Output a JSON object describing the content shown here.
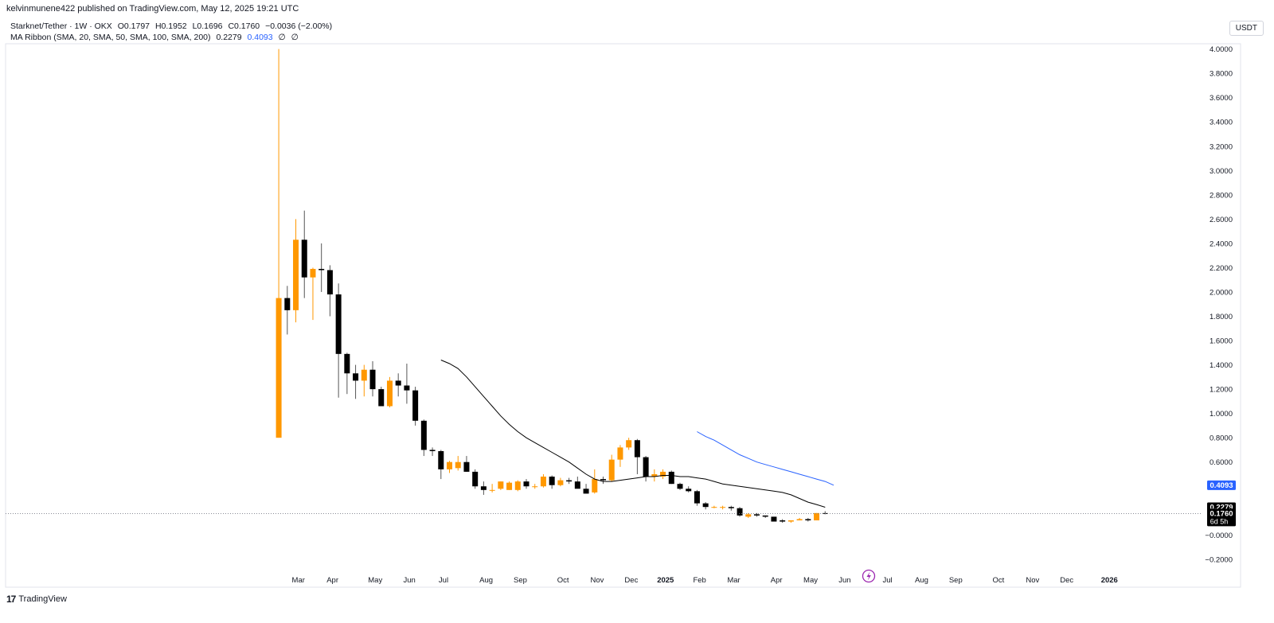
{
  "header": {
    "published": "kelvinmunene422 published on TradingView.com, May 12, 2025 19:21 UTC"
  },
  "legend": {
    "symbol": "Starknet/Tether · 1W · OKX",
    "open": "O0.1797",
    "high": "H0.1952",
    "low": "L0.1696",
    "close": "C0.1760",
    "change": "−0.0036 (−2.00%)",
    "ma_title": "MA Ribbon (SMA, 20, SMA, 50, SMA, 100, SMA, 200)",
    "ma_v1": "0.2279",
    "ma_v2": "0.4093",
    "ma_v3": "∅",
    "ma_v4": "∅"
  },
  "toolbar": {
    "currency": "USDT"
  },
  "footer": {
    "logo_label": "TradingView",
    "logo_glyph": "17"
  },
  "colors": {
    "up": "#ff9800",
    "down": "#000000",
    "sma20": "#000000",
    "sma50": "#2962ff",
    "grid": "#f0f3fa"
  },
  "chart_data": {
    "type": "candlestick",
    "title": "Starknet/Tether · 1W · OKX",
    "y_ticks": [
      "4.0000",
      "3.8000",
      "3.6000",
      "3.4000",
      "3.2000",
      "3.0000",
      "2.8000",
      "2.6000",
      "2.4000",
      "2.2000",
      "2.0000",
      "1.8000",
      "1.6000",
      "1.4000",
      "1.2000",
      "1.0000",
      "0.8000",
      "0.6000",
      "0.4000",
      "0.2000",
      "−0.0000",
      "−0.2000"
    ],
    "y_tick_values": [
      4.0,
      3.8,
      3.6,
      3.4,
      3.2,
      3.0,
      2.8,
      2.6,
      2.4,
      2.2,
      2.0,
      1.8,
      1.6,
      1.4,
      1.2,
      1.0,
      0.8,
      0.6,
      0.4,
      0.2,
      0.0,
      -0.2
    ],
    "ylim": [
      -0.26,
      4.05
    ],
    "x_ticks": [
      "Mar",
      "Apr",
      "May",
      "Jun",
      "Jul",
      "Aug",
      "Sep",
      "Oct",
      "Nov",
      "Dec",
      "2025",
      "Feb",
      "Mar",
      "Apr",
      "May",
      "Jun",
      "Jul",
      "Aug",
      "Sep",
      "Oct",
      "Nov",
      "Dec",
      "2026"
    ],
    "x_tick_weeks": [
      2.3,
      6.3,
      11.3,
      15.3,
      19.3,
      24.3,
      28.3,
      33.3,
      37.3,
      41.3,
      45.3,
      49.3,
      53.3,
      58.3,
      62.3,
      66.3,
      71.3,
      75.3,
      79.3,
      84.3,
      88.3,
      92.3,
      97.3
    ],
    "x_range_weeks": [
      -32,
      108
    ],
    "candles": [
      {
        "o": 0.8,
        "h": 4.0,
        "l": 0.8,
        "c": 1.95
      },
      {
        "o": 1.95,
        "h": 2.05,
        "l": 1.65,
        "c": 1.85
      },
      {
        "o": 1.85,
        "h": 2.6,
        "l": 1.75,
        "c": 2.43
      },
      {
        "o": 2.43,
        "h": 2.67,
        "l": 1.95,
        "c": 2.12
      },
      {
        "o": 2.12,
        "h": 2.2,
        "l": 1.77,
        "c": 2.19
      },
      {
        "o": 2.19,
        "h": 2.4,
        "l": 2.0,
        "c": 2.18
      },
      {
        "o": 2.18,
        "h": 2.22,
        "l": 1.8,
        "c": 1.98
      },
      {
        "o": 1.98,
        "h": 2.07,
        "l": 1.13,
        "c": 1.49
      },
      {
        "o": 1.49,
        "h": 1.5,
        "l": 1.16,
        "c": 1.33
      },
      {
        "o": 1.33,
        "h": 1.4,
        "l": 1.12,
        "c": 1.27
      },
      {
        "o": 1.27,
        "h": 1.4,
        "l": 1.14,
        "c": 1.36
      },
      {
        "o": 1.36,
        "h": 1.43,
        "l": 1.14,
        "c": 1.2
      },
      {
        "o": 1.2,
        "h": 1.22,
        "l": 1.06,
        "c": 1.06
      },
      {
        "o": 1.06,
        "h": 1.3,
        "l": 1.05,
        "c": 1.27
      },
      {
        "o": 1.27,
        "h": 1.33,
        "l": 1.14,
        "c": 1.23
      },
      {
        "o": 1.23,
        "h": 1.41,
        "l": 1.08,
        "c": 1.19
      },
      {
        "o": 1.19,
        "h": 1.22,
        "l": 0.9,
        "c": 0.94
      },
      {
        "o": 0.94,
        "h": 0.95,
        "l": 0.65,
        "c": 0.7
      },
      {
        "o": 0.7,
        "h": 0.72,
        "l": 0.65,
        "c": 0.69
      },
      {
        "o": 0.69,
        "h": 0.7,
        "l": 0.46,
        "c": 0.54
      },
      {
        "o": 0.54,
        "h": 0.61,
        "l": 0.51,
        "c": 0.6
      },
      {
        "o": 0.55,
        "h": 0.65,
        "l": 0.53,
        "c": 0.6
      },
      {
        "o": 0.6,
        "h": 0.65,
        "l": 0.52,
        "c": 0.52
      },
      {
        "o": 0.52,
        "h": 0.54,
        "l": 0.38,
        "c": 0.4
      },
      {
        "o": 0.4,
        "h": 0.44,
        "l": 0.33,
        "c": 0.37
      },
      {
        "o": 0.37,
        "h": 0.42,
        "l": 0.35,
        "c": 0.37
      },
      {
        "o": 0.38,
        "h": 0.44,
        "l": 0.37,
        "c": 0.44
      },
      {
        "o": 0.37,
        "h": 0.44,
        "l": 0.37,
        "c": 0.43
      },
      {
        "o": 0.37,
        "h": 0.45,
        "l": 0.36,
        "c": 0.44
      },
      {
        "o": 0.44,
        "h": 0.46,
        "l": 0.38,
        "c": 0.4
      },
      {
        "o": 0.4,
        "h": 0.42,
        "l": 0.38,
        "c": 0.4
      },
      {
        "o": 0.4,
        "h": 0.5,
        "l": 0.39,
        "c": 0.48
      },
      {
        "o": 0.48,
        "h": 0.49,
        "l": 0.38,
        "c": 0.41
      },
      {
        "o": 0.41,
        "h": 0.47,
        "l": 0.4,
        "c": 0.45
      },
      {
        "o": 0.45,
        "h": 0.47,
        "l": 0.42,
        "c": 0.44
      },
      {
        "o": 0.44,
        "h": 0.48,
        "l": 0.39,
        "c": 0.38
      },
      {
        "o": 0.38,
        "h": 0.42,
        "l": 0.34,
        "c": 0.34
      },
      {
        "o": 0.35,
        "h": 0.54,
        "l": 0.34,
        "c": 0.46
      },
      {
        "o": 0.46,
        "h": 0.48,
        "l": 0.42,
        "c": 0.45
      },
      {
        "o": 0.45,
        "h": 0.66,
        "l": 0.44,
        "c": 0.62
      },
      {
        "o": 0.62,
        "h": 0.74,
        "l": 0.56,
        "c": 0.72
      },
      {
        "o": 0.72,
        "h": 0.8,
        "l": 0.7,
        "c": 0.78
      },
      {
        "o": 0.78,
        "h": 0.79,
        "l": 0.5,
        "c": 0.64
      },
      {
        "o": 0.64,
        "h": 0.65,
        "l": 0.44,
        "c": 0.48
      },
      {
        "o": 0.48,
        "h": 0.54,
        "l": 0.44,
        "c": 0.5
      },
      {
        "o": 0.48,
        "h": 0.54,
        "l": 0.46,
        "c": 0.52
      },
      {
        "o": 0.52,
        "h": 0.53,
        "l": 0.42,
        "c": 0.42
      },
      {
        "o": 0.42,
        "h": 0.43,
        "l": 0.37,
        "c": 0.38
      },
      {
        "o": 0.38,
        "h": 0.4,
        "l": 0.35,
        "c": 0.36
      },
      {
        "o": 0.36,
        "h": 0.37,
        "l": 0.24,
        "c": 0.26
      },
      {
        "o": 0.26,
        "h": 0.27,
        "l": 0.21,
        "c": 0.23
      },
      {
        "o": 0.23,
        "h": 0.24,
        "l": 0.22,
        "c": 0.23
      },
      {
        "o": 0.23,
        "h": 0.24,
        "l": 0.21,
        "c": 0.23
      },
      {
        "o": 0.23,
        "h": 0.24,
        "l": 0.2,
        "c": 0.22
      },
      {
        "o": 0.22,
        "h": 0.23,
        "l": 0.15,
        "c": 0.16
      },
      {
        "o": 0.15,
        "h": 0.18,
        "l": 0.14,
        "c": 0.17
      },
      {
        "o": 0.17,
        "h": 0.18,
        "l": 0.15,
        "c": 0.16
      },
      {
        "o": 0.16,
        "h": 0.16,
        "l": 0.14,
        "c": 0.15
      },
      {
        "o": 0.15,
        "h": 0.15,
        "l": 0.11,
        "c": 0.11
      },
      {
        "o": 0.12,
        "h": 0.13,
        "l": 0.1,
        "c": 0.11
      },
      {
        "o": 0.11,
        "h": 0.12,
        "l": 0.1,
        "c": 0.12
      },
      {
        "o": 0.12,
        "h": 0.14,
        "l": 0.12,
        "c": 0.13
      },
      {
        "o": 0.13,
        "h": 0.14,
        "l": 0.11,
        "c": 0.12
      },
      {
        "o": 0.12,
        "h": 0.18,
        "l": 0.12,
        "c": 0.18
      },
      {
        "o": 0.1797,
        "h": 0.1952,
        "l": 0.1696,
        "c": 0.176
      }
    ],
    "series": [
      {
        "name": "SMA 20",
        "color": "#000000",
        "start_week": 19,
        "values": [
          1.44,
          1.41,
          1.37,
          1.3,
          1.22,
          1.14,
          1.06,
          0.98,
          0.91,
          0.85,
          0.8,
          0.76,
          0.72,
          0.68,
          0.64,
          0.6,
          0.55,
          0.5,
          0.46,
          0.44,
          0.44,
          0.45,
          0.46,
          0.47,
          0.48,
          0.48,
          0.49,
          0.49,
          0.48,
          0.48,
          0.47,
          0.46,
          0.44,
          0.42,
          0.41,
          0.4,
          0.39,
          0.38,
          0.37,
          0.36,
          0.35,
          0.33,
          0.3,
          0.27,
          0.25,
          0.2279
        ]
      },
      {
        "name": "SMA 50",
        "color": "#2962ff",
        "start_week": 49,
        "values": [
          0.85,
          0.81,
          0.78,
          0.74,
          0.7,
          0.66,
          0.63,
          0.6,
          0.58,
          0.56,
          0.54,
          0.52,
          0.5,
          0.48,
          0.46,
          0.44,
          0.4093
        ]
      }
    ],
    "price_labels": [
      {
        "value": 0.4093,
        "text": "0.4093",
        "bg": "#2962ff"
      },
      {
        "value": 0.2279,
        "text": "0.2279",
        "bg": "#000000"
      },
      {
        "value": 0.176,
        "text": "0.1760",
        "bg": "#000000",
        "sub": "6d 5h"
      }
    ],
    "last_price": 0.176
  }
}
